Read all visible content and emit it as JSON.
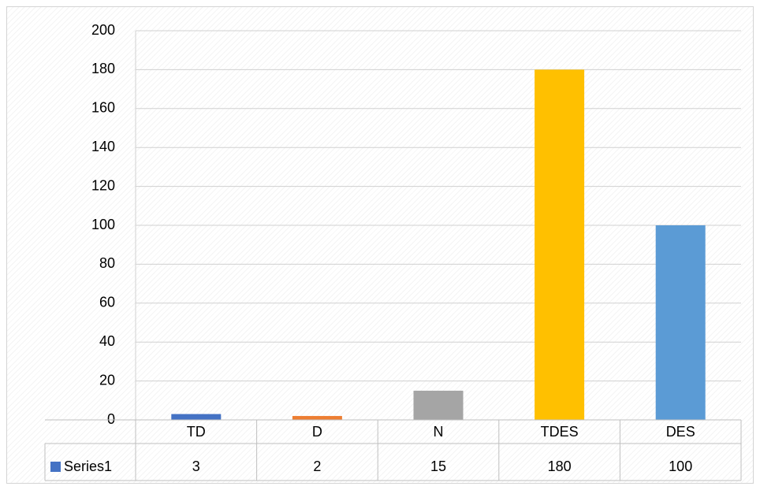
{
  "chart_data": {
    "type": "bar",
    "categories": [
      "TD",
      "D",
      "N",
      "TDES",
      "DES"
    ],
    "series": [
      {
        "name": "Series1",
        "values": [
          3,
          2,
          15,
          180,
          100
        ]
      }
    ],
    "bar_colors": [
      "#4472c4",
      "#ed7d31",
      "#a5a5a5",
      "#ffc000",
      "#5b9bd5"
    ],
    "legend_color": "#4472c4",
    "ylim": [
      0,
      200
    ],
    "yticks": [
      0,
      20,
      40,
      60,
      80,
      100,
      120,
      140,
      160,
      180,
      200
    ],
    "grid": true,
    "data_table": true
  }
}
